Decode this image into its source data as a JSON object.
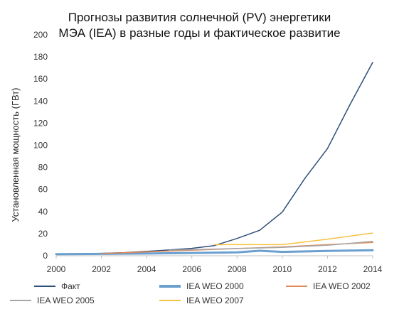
{
  "chart_data": {
    "type": "line",
    "title_lines": [
      "Прогнозы развития солнечной (PV) энергетики",
      "МЭА (IEA) в разные годы и фактическое развитие"
    ],
    "xlabel": "",
    "ylabel": "Установленная мощность (ГВт)",
    "xlim": [
      2000,
      2014
    ],
    "ylim": [
      0,
      200
    ],
    "x_ticks": [
      "2000",
      "2002",
      "2004",
      "2006",
      "2008",
      "2010",
      "2012",
      "2014"
    ],
    "y_ticks": [
      "0",
      "20",
      "40",
      "60",
      "80",
      "100",
      "120",
      "140",
      "160",
      "180",
      "200"
    ],
    "grid": false,
    "legend_position": "bottom",
    "series": [
      {
        "name": "Факт",
        "color": "#2f4e79",
        "width": 1.5,
        "points": [
          [
            2000,
            1.3
          ],
          [
            2001,
            1.7
          ],
          [
            2002,
            2.2
          ],
          [
            2003,
            2.8
          ],
          [
            2004,
            3.9
          ],
          [
            2005,
            5.2
          ],
          [
            2006,
            6.7
          ],
          [
            2007,
            9.2
          ],
          [
            2008,
            15.6
          ],
          [
            2009,
            23
          ],
          [
            2010,
            39.5
          ],
          [
            2011,
            70
          ],
          [
            2012,
            97
          ],
          [
            2013,
            137
          ],
          [
            2014,
            175
          ]
        ]
      },
      {
        "name": "IEA WEO 2000",
        "color": "#6a9fd0",
        "width": 3,
        "points": [
          [
            2000,
            1.5
          ],
          [
            2002,
            1.7
          ],
          [
            2004,
            2
          ],
          [
            2006,
            2.5
          ],
          [
            2008,
            3
          ],
          [
            2009,
            4.5
          ],
          [
            2010,
            3.5
          ],
          [
            2012,
            4.3
          ],
          [
            2014,
            5
          ]
        ]
      },
      {
        "name": "IEA WEO 2002",
        "color": "#e08a56",
        "width": 1.5,
        "points": [
          [
            2002,
            2
          ],
          [
            2004,
            3.5
          ],
          [
            2006,
            5
          ],
          [
            2008,
            6.5
          ],
          [
            2010,
            8
          ],
          [
            2012,
            10
          ],
          [
            2014,
            12
          ]
        ]
      },
      {
        "name": "IEA WEO 2005",
        "color": "#a6a6a6",
        "width": 1.5,
        "points": [
          [
            2005,
            5
          ],
          [
            2008,
            6.5
          ],
          [
            2010,
            7.5
          ],
          [
            2012,
            9.5
          ],
          [
            2014,
            13
          ]
        ]
      },
      {
        "name": "IEA WEO 2007",
        "color": "#f5c242",
        "width": 1.5,
        "points": [
          [
            2007,
            10
          ],
          [
            2008,
            10
          ],
          [
            2010,
            10
          ],
          [
            2012,
            15
          ],
          [
            2014,
            20.5
          ]
        ]
      }
    ]
  }
}
